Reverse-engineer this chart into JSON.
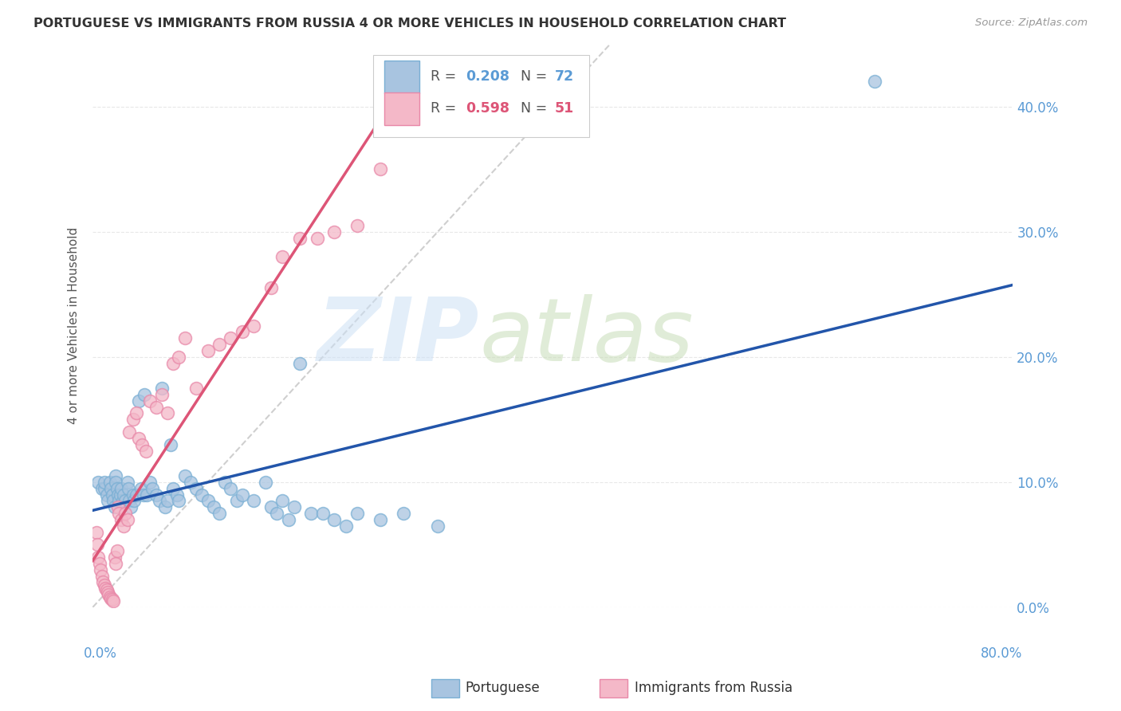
{
  "title": "PORTUGUESE VS IMMIGRANTS FROM RUSSIA 4 OR MORE VEHICLES IN HOUSEHOLD CORRELATION CHART",
  "source": "Source: ZipAtlas.com",
  "ylabel": "4 or more Vehicles in Household",
  "xlim": [
    0.0,
    0.8
  ],
  "ylim": [
    0.0,
    0.45
  ],
  "yticks": [
    0.0,
    0.1,
    0.2,
    0.3,
    0.4
  ],
  "xticks": [
    0.0,
    0.1,
    0.2,
    0.3,
    0.4,
    0.5,
    0.6,
    0.7,
    0.8
  ],
  "portuguese_color": "#a8c4e0",
  "portuguese_edge_color": "#7aafd4",
  "russia_color": "#f4b8c8",
  "russia_edge_color": "#e888a8",
  "portuguese_line_color": "#2255aa",
  "russia_line_color": "#dd5577",
  "diagonal_color": "#bbbbbb",
  "legend_r_portuguese": "0.208",
  "legend_n_portuguese": "72",
  "legend_r_russia": "0.598",
  "legend_n_russia": "51",
  "portuguese_x": [
    0.005,
    0.008,
    0.01,
    0.01,
    0.012,
    0.013,
    0.015,
    0.016,
    0.017,
    0.018,
    0.019,
    0.02,
    0.02,
    0.021,
    0.022,
    0.023,
    0.024,
    0.025,
    0.026,
    0.027,
    0.028,
    0.03,
    0.031,
    0.032,
    0.033,
    0.035,
    0.036,
    0.038,
    0.04,
    0.042,
    0.044,
    0.045,
    0.047,
    0.05,
    0.052,
    0.055,
    0.058,
    0.06,
    0.063,
    0.065,
    0.068,
    0.07,
    0.073,
    0.075,
    0.08,
    0.085,
    0.09,
    0.095,
    0.1,
    0.105,
    0.11,
    0.115,
    0.12,
    0.125,
    0.13,
    0.14,
    0.15,
    0.155,
    0.16,
    0.165,
    0.17,
    0.175,
    0.18,
    0.19,
    0.2,
    0.21,
    0.22,
    0.23,
    0.25,
    0.27,
    0.3,
    0.68
  ],
  "portuguese_y": [
    0.1,
    0.095,
    0.095,
    0.1,
    0.09,
    0.085,
    0.1,
    0.095,
    0.09,
    0.085,
    0.08,
    0.105,
    0.1,
    0.095,
    0.09,
    0.085,
    0.09,
    0.095,
    0.085,
    0.09,
    0.085,
    0.1,
    0.095,
    0.085,
    0.08,
    0.09,
    0.085,
    0.09,
    0.165,
    0.095,
    0.09,
    0.17,
    0.09,
    0.1,
    0.095,
    0.09,
    0.085,
    0.175,
    0.08,
    0.085,
    0.13,
    0.095,
    0.09,
    0.085,
    0.105,
    0.1,
    0.095,
    0.09,
    0.085,
    0.08,
    0.075,
    0.1,
    0.095,
    0.085,
    0.09,
    0.085,
    0.1,
    0.08,
    0.075,
    0.085,
    0.07,
    0.08,
    0.195,
    0.075,
    0.075,
    0.07,
    0.065,
    0.075,
    0.07,
    0.075,
    0.065,
    0.42
  ],
  "russia_x": [
    0.003,
    0.004,
    0.005,
    0.006,
    0.007,
    0.008,
    0.009,
    0.01,
    0.011,
    0.012,
    0.013,
    0.014,
    0.015,
    0.016,
    0.017,
    0.018,
    0.019,
    0.02,
    0.021,
    0.022,
    0.023,
    0.025,
    0.027,
    0.028,
    0.03,
    0.032,
    0.035,
    0.038,
    0.04,
    0.043,
    0.046,
    0.05,
    0.055,
    0.06,
    0.065,
    0.07,
    0.075,
    0.08,
    0.09,
    0.1,
    0.11,
    0.12,
    0.13,
    0.14,
    0.155,
    0.165,
    0.18,
    0.195,
    0.21,
    0.23,
    0.25
  ],
  "russia_y": [
    0.06,
    0.05,
    0.04,
    0.035,
    0.03,
    0.025,
    0.02,
    0.018,
    0.015,
    0.014,
    0.012,
    0.01,
    0.008,
    0.007,
    0.006,
    0.005,
    0.04,
    0.035,
    0.045,
    0.08,
    0.075,
    0.07,
    0.065,
    0.075,
    0.07,
    0.14,
    0.15,
    0.155,
    0.135,
    0.13,
    0.125,
    0.165,
    0.16,
    0.17,
    0.155,
    0.195,
    0.2,
    0.215,
    0.175,
    0.205,
    0.21,
    0.215,
    0.22,
    0.225,
    0.255,
    0.28,
    0.295,
    0.295,
    0.3,
    0.305,
    0.35
  ],
  "background_color": "#ffffff",
  "grid_color": "#e8e8e8"
}
